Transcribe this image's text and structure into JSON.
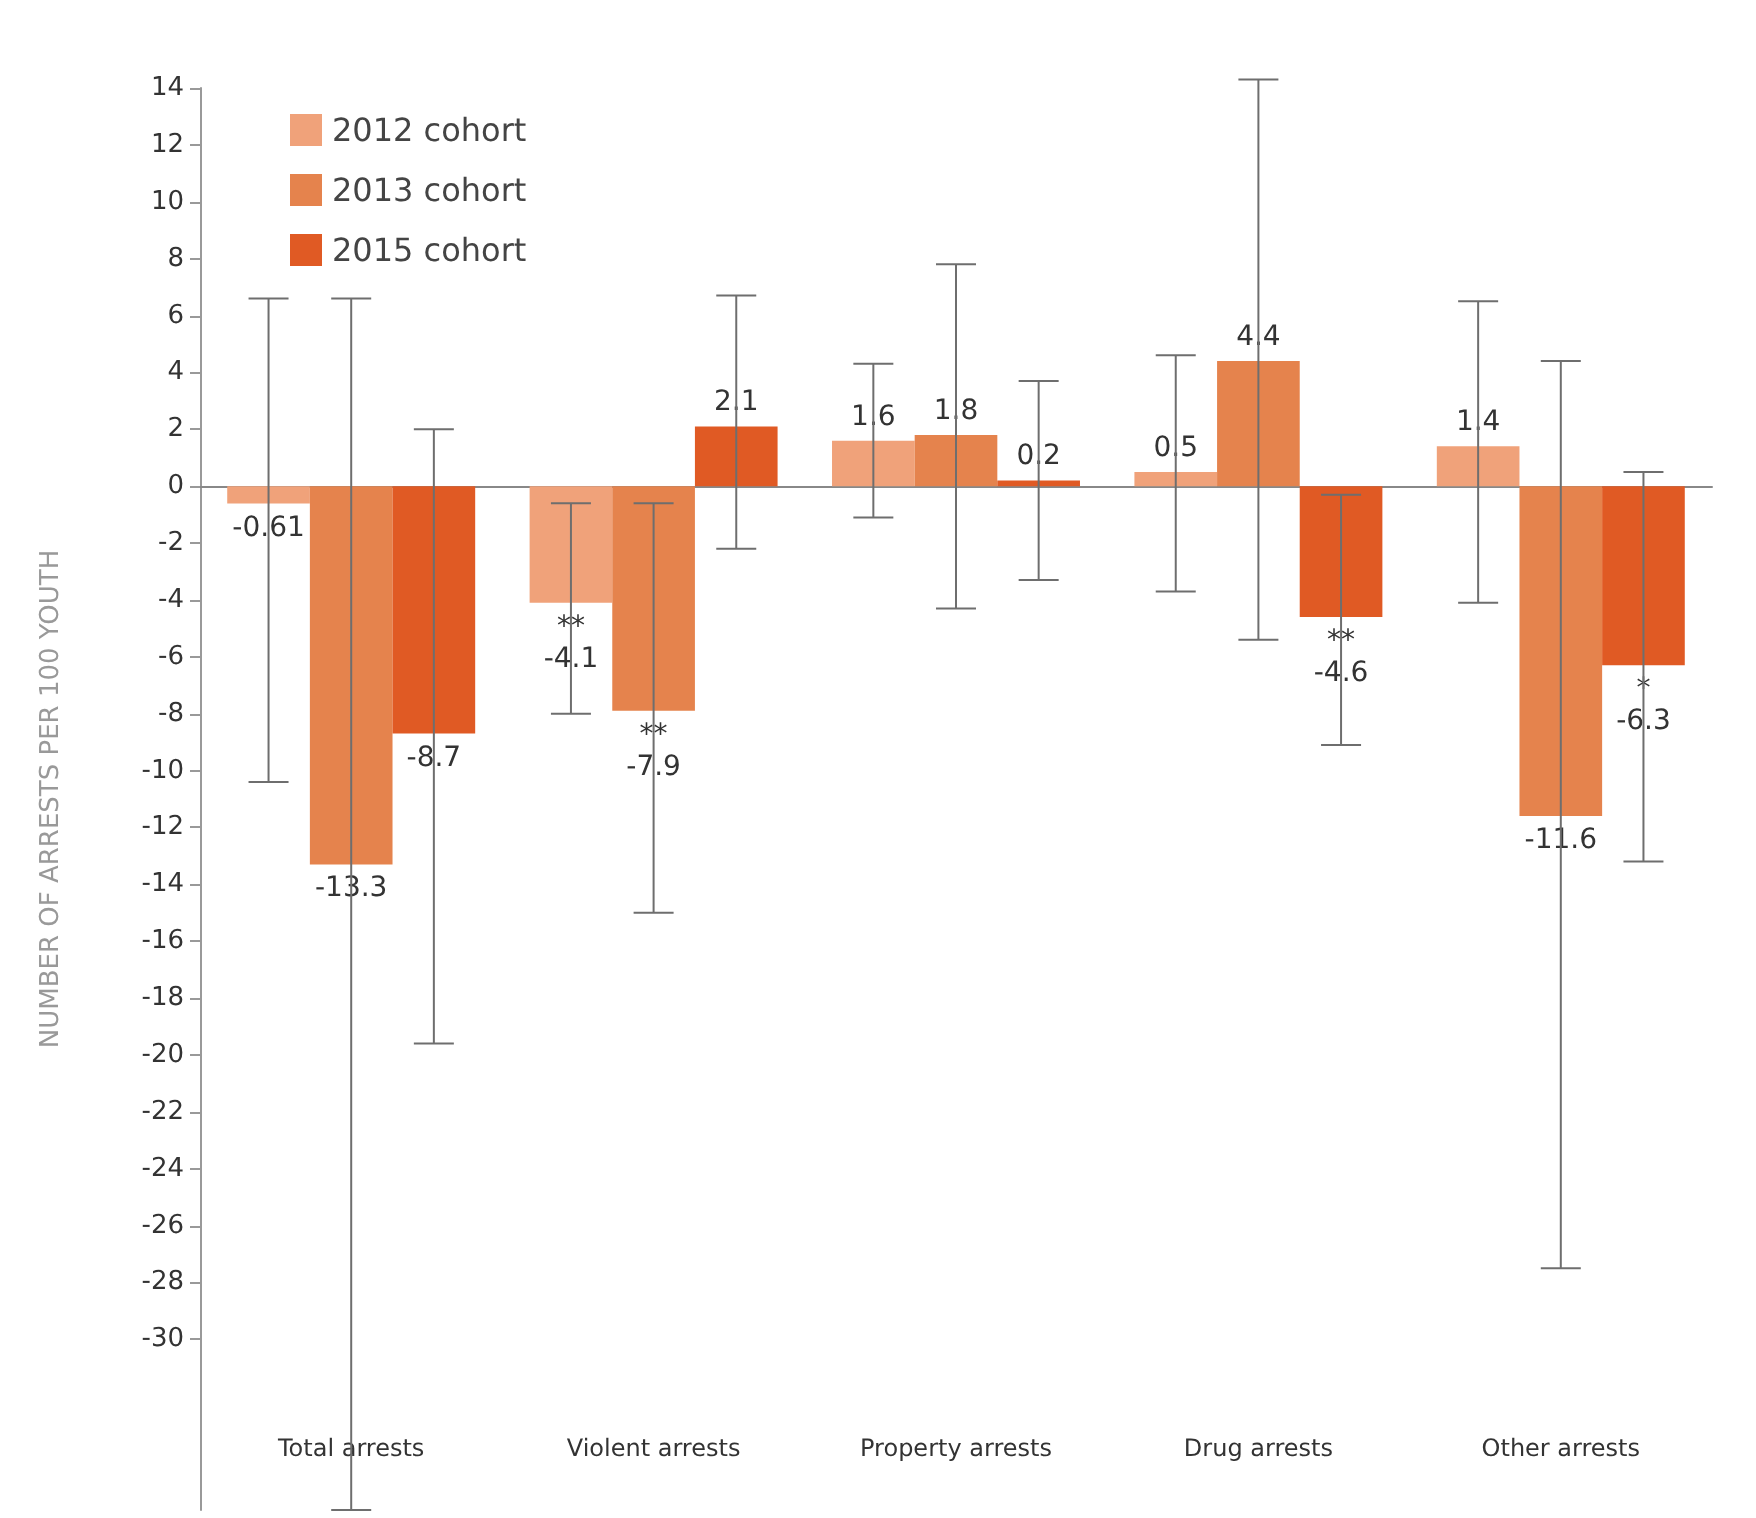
{
  "chart_data": {
    "type": "bar",
    "ylabel": "NUMBER OF ARRESTS PER 100 YOUTH",
    "categories": [
      "Total arrests",
      "Violent arrests",
      "Property arrests",
      "Drug arrests",
      "Other arrests"
    ],
    "series": [
      {
        "name": "2012 cohort",
        "color": "#f0a27a",
        "values": [
          -0.61,
          -4.1,
          1.6,
          0.5,
          1.4
        ],
        "errors": [
          [
            -10.4,
            6.6
          ],
          [
            -8.0,
            -0.6
          ],
          [
            -1.1,
            4.3
          ],
          [
            -3.7,
            4.6
          ],
          [
            -4.1,
            6.5
          ]
        ],
        "value_labels": [
          "-0.61",
          "**\n-4.1",
          "1.6",
          "0.5",
          "1.4"
        ]
      },
      {
        "name": "2013 cohort",
        "color": "#e5834d",
        "values": [
          -13.3,
          -7.9,
          1.8,
          4.4,
          -11.6
        ],
        "errors": [
          [
            -36,
            6.6
          ],
          [
            -15.0,
            -0.6
          ],
          [
            -4.3,
            7.8
          ],
          [
            -5.4,
            14.3
          ],
          [
            -27.5,
            4.4
          ]
        ],
        "value_labels": [
          "-13.3",
          "**\n-7.9",
          "1.8",
          "4.4",
          "-11.6"
        ]
      },
      {
        "name": "2015 cohort",
        "color": "#e05a24",
        "values": [
          -8.7,
          2.1,
          0.2,
          -4.6,
          -6.3
        ],
        "errors": [
          [
            -19.6,
            2.0
          ],
          [
            -2.2,
            6.7
          ],
          [
            -3.3,
            3.7
          ],
          [
            -9.1,
            -0.3
          ],
          [
            -13.2,
            0.5
          ]
        ],
        "value_labels": [
          "-8.7",
          "2.1",
          "0.2",
          "**\n-4.6",
          "*\n-6.3"
        ]
      }
    ],
    "ylim": [
      -36,
      14
    ],
    "yticks": [
      -30,
      -28,
      -26,
      -24,
      -22,
      -20,
      -18,
      -16,
      -14,
      -12,
      -10,
      -8,
      -6,
      -4,
      -2,
      0,
      2,
      4,
      6,
      8,
      10,
      12,
      14
    ],
    "grid": false,
    "legend": "top left"
  }
}
